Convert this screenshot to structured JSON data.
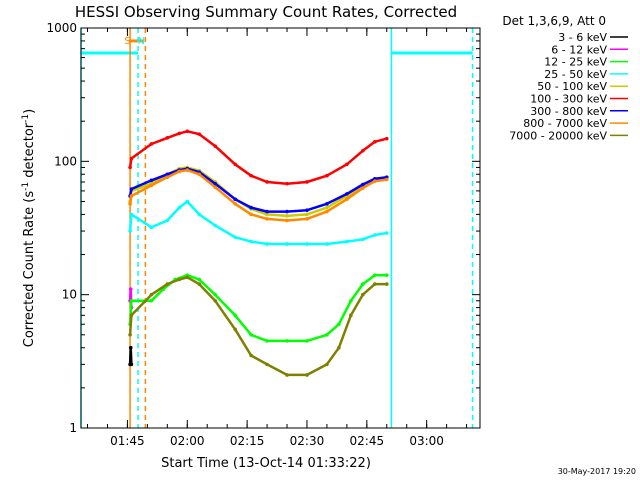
{
  "chart_data": {
    "type": "line",
    "title": "HESSI Observing Summary Count Rates, Corrected",
    "xlabel": "Start Time (13-Oct-14 01:33:22)",
    "ylabel_main": "Corrected Count Rate (s",
    "ylabel_sup1": "-1",
    "ylabel_mid": " detector",
    "ylabel_sup2": "-1",
    "ylabel_end": ")",
    "y_scale": "log",
    "ylim": [
      1,
      1000
    ],
    "xlim": [
      "01:33:22",
      "03:13:22"
    ],
    "x_ticks": [
      {
        "t": "01:45",
        "label": "01:45"
      },
      {
        "t": "02:00",
        "label": "02:00"
      },
      {
        "t": "02:15",
        "label": "02:15"
      },
      {
        "t": "02:30",
        "label": "02:30"
      },
      {
        "t": "02:45",
        "label": "02:45"
      },
      {
        "t": "03:00",
        "label": "03:00"
      }
    ],
    "y_ticks": [
      {
        "v": 1,
        "label": "1"
      },
      {
        "v": 10,
        "label": "10"
      },
      {
        "v": 100,
        "label": "100"
      },
      {
        "v": 1000,
        "label": "1000"
      }
    ],
    "legend_header": "Det 1,3,6,9, Att 0",
    "legend_position": "top-right outside plot",
    "series": [
      {
        "name": "3 - 6 keV",
        "color": "#000000",
        "points": [
          [
            "01:45:40",
            3
          ],
          [
            "01:45:50",
            4
          ],
          [
            "01:46:00",
            3
          ]
        ]
      },
      {
        "name": "6 - 12 keV",
        "color": "#ff00ff",
        "points": [
          [
            "01:45:40",
            9
          ],
          [
            "01:45:50",
            11
          ],
          [
            "01:46:00",
            8
          ]
        ]
      },
      {
        "name": "12 - 25 keV",
        "color": "#00ff00",
        "points": [
          [
            "01:45:40",
            6
          ],
          [
            "01:46:00",
            9
          ],
          [
            "01:51:00",
            9
          ],
          [
            "01:54:00",
            11
          ],
          [
            "01:57:00",
            13
          ],
          [
            "02:00:00",
            14
          ],
          [
            "02:03:00",
            13
          ],
          [
            "02:07:00",
            10
          ],
          [
            "02:12:00",
            7
          ],
          [
            "02:16:00",
            5
          ],
          [
            "02:20:00",
            4.5
          ],
          [
            "02:25:00",
            4.5
          ],
          [
            "02:30:00",
            4.5
          ],
          [
            "02:35:00",
            5
          ],
          [
            "02:38:00",
            6
          ],
          [
            "02:41:00",
            9
          ],
          [
            "02:44:00",
            12
          ],
          [
            "02:47:00",
            14
          ],
          [
            "02:50:00",
            14
          ]
        ]
      },
      {
        "name": "25 - 50 keV",
        "color": "#00ffff",
        "points": [
          [
            "01:45:40",
            30
          ],
          [
            "01:46:00",
            40
          ],
          [
            "01:51:00",
            32
          ],
          [
            "01:55:00",
            36
          ],
          [
            "01:58:00",
            45
          ],
          [
            "02:00:00",
            50
          ],
          [
            "02:03:00",
            40
          ],
          [
            "02:07:00",
            33
          ],
          [
            "02:12:00",
            27
          ],
          [
            "02:16:00",
            25
          ],
          [
            "02:20:00",
            24
          ],
          [
            "02:25:00",
            24
          ],
          [
            "02:30:00",
            24
          ],
          [
            "02:35:00",
            24
          ],
          [
            "02:40:00",
            25
          ],
          [
            "02:44:00",
            26
          ],
          [
            "02:47:00",
            28
          ],
          [
            "02:50:00",
            29
          ]
        ]
      },
      {
        "name": "50 - 100 keV",
        "color": "#cccc00",
        "points": [
          [
            "01:45:40",
            50
          ],
          [
            "01:46:00",
            60
          ],
          [
            "01:51:00",
            68
          ],
          [
            "01:55:00",
            80
          ],
          [
            "01:58:00",
            88
          ],
          [
            "02:00:00",
            90
          ],
          [
            "02:03:00",
            85
          ],
          [
            "02:07:00",
            70
          ],
          [
            "02:12:00",
            52
          ],
          [
            "02:16:00",
            44
          ],
          [
            "02:20:00",
            40
          ],
          [
            "02:25:00",
            39
          ],
          [
            "02:30:00",
            40
          ],
          [
            "02:35:00",
            45
          ],
          [
            "02:40:00",
            55
          ],
          [
            "02:44:00",
            65
          ],
          [
            "02:47:00",
            73
          ],
          [
            "02:50:00",
            75
          ]
        ]
      },
      {
        "name": "100 - 300 keV",
        "color": "#ff0000",
        "points": [
          [
            "01:45:40",
            90
          ],
          [
            "01:46:00",
            105
          ],
          [
            "01:51:00",
            135
          ],
          [
            "01:55:00",
            150
          ],
          [
            "01:58:00",
            162
          ],
          [
            "02:00:00",
            168
          ],
          [
            "02:03:00",
            160
          ],
          [
            "02:07:00",
            130
          ],
          [
            "02:12:00",
            95
          ],
          [
            "02:16:00",
            78
          ],
          [
            "02:20:00",
            70
          ],
          [
            "02:25:00",
            68
          ],
          [
            "02:30:00",
            70
          ],
          [
            "02:35:00",
            78
          ],
          [
            "02:40:00",
            95
          ],
          [
            "02:44:00",
            120
          ],
          [
            "02:47:00",
            140
          ],
          [
            "02:50:00",
            148
          ]
        ]
      },
      {
        "name": "300 - 800 keV",
        "color": "#0000ff",
        "points": [
          [
            "01:45:40",
            55
          ],
          [
            "01:46:00",
            62
          ],
          [
            "01:51:00",
            72
          ],
          [
            "01:55:00",
            80
          ],
          [
            "01:58:00",
            86
          ],
          [
            "02:00:00",
            88
          ],
          [
            "02:03:00",
            83
          ],
          [
            "02:07:00",
            68
          ],
          [
            "02:12:00",
            52
          ],
          [
            "02:16:00",
            45
          ],
          [
            "02:20:00",
            42
          ],
          [
            "02:25:00",
            42
          ],
          [
            "02:30:00",
            43
          ],
          [
            "02:35:00",
            48
          ],
          [
            "02:40:00",
            57
          ],
          [
            "02:44:00",
            67
          ],
          [
            "02:47:00",
            74
          ],
          [
            "02:50:00",
            76
          ]
        ]
      },
      {
        "name": "800 - 7000 keV",
        "color": "#ff8800",
        "points": [
          [
            "01:45:40",
            48
          ],
          [
            "01:46:00",
            55
          ],
          [
            "01:51:00",
            66
          ],
          [
            "01:55:00",
            76
          ],
          [
            "01:58:00",
            84
          ],
          [
            "02:00:00",
            86
          ],
          [
            "02:03:00",
            80
          ],
          [
            "02:07:00",
            64
          ],
          [
            "02:12:00",
            48
          ],
          [
            "02:16:00",
            40
          ],
          [
            "02:20:00",
            37
          ],
          [
            "02:25:00",
            36
          ],
          [
            "02:30:00",
            37
          ],
          [
            "02:35:00",
            42
          ],
          [
            "02:40:00",
            52
          ],
          [
            "02:44:00",
            63
          ],
          [
            "02:47:00",
            71
          ],
          [
            "02:50:00",
            73
          ]
        ]
      },
      {
        "name": "7000 - 20000 keV",
        "color": "#808000",
        "points": [
          [
            "01:45:40",
            5
          ],
          [
            "01:46:00",
            7
          ],
          [
            "01:51:00",
            10
          ],
          [
            "01:55:00",
            12
          ],
          [
            "01:58:00",
            13
          ],
          [
            "02:00:00",
            13.5
          ],
          [
            "02:03:00",
            12
          ],
          [
            "02:07:00",
            9
          ],
          [
            "02:12:00",
            5.5
          ],
          [
            "02:16:00",
            3.5
          ],
          [
            "02:20:00",
            3
          ],
          [
            "02:25:00",
            2.5
          ],
          [
            "02:30:00",
            2.5
          ],
          [
            "02:35:00",
            3
          ],
          [
            "02:38:00",
            4
          ],
          [
            "02:41:00",
            7
          ],
          [
            "02:44:00",
            10
          ],
          [
            "02:47:00",
            12
          ],
          [
            "02:50:00",
            12
          ]
        ]
      }
    ],
    "annotations": [
      {
        "text": "S",
        "t": "01:45:00",
        "color": "#ff8800"
      },
      {
        "text": "N",
        "t": "01:48:30",
        "color": "#00ffff"
      }
    ],
    "markers": [
      {
        "kind": "saa-bar",
        "from": "01:45:20",
        "to": "01:49:00",
        "value": 800,
        "color": "#ff8800"
      },
      {
        "kind": "night-level",
        "from": "01:33:22",
        "to": "01:47:40",
        "value": 650,
        "color": "#00ffff"
      },
      {
        "kind": "night-level",
        "from": "02:51:10",
        "to": "03:11:30",
        "value": 650,
        "color": "#00ffff"
      },
      {
        "kind": "vline-solid",
        "t": "01:33:22",
        "color": "#00ffff"
      },
      {
        "kind": "vline-solid",
        "t": "01:45:40",
        "color": "#ff8800"
      },
      {
        "kind": "vline-dashed",
        "t": "01:47:40",
        "color": "#00ffff"
      },
      {
        "kind": "vline-dashed",
        "t": "01:49:30",
        "color": "#ff8800"
      },
      {
        "kind": "vline-solid",
        "t": "02:51:10",
        "color": "#00ffff"
      },
      {
        "kind": "vline-dashed",
        "t": "03:11:30",
        "color": "#00ffff"
      }
    ],
    "grid": false
  },
  "footer": {
    "timestamp": "30-May-2017 19:20"
  }
}
